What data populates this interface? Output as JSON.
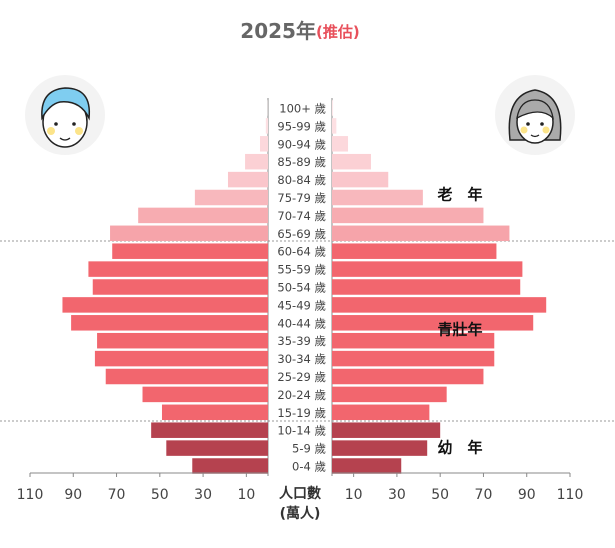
{
  "chart_data": {
    "type": "pyramid",
    "title": "2025年",
    "subtitle": "(推估)",
    "title_color": "#666666",
    "subtitle_color": "#e8505b",
    "axis_label": [
      "人口數",
      "(萬人)"
    ],
    "categories": [
      "0-4 歲",
      "5-9 歲",
      "10-14 歲",
      "15-19 歲",
      "20-24 歲",
      "25-29 歲",
      "30-34 歲",
      "35-39 歲",
      "40-44 歲",
      "45-49 歲",
      "50-54 歲",
      "55-59 歲",
      "60-64 歲",
      "65-69 歲",
      "70-74 歲",
      "75-79 歲",
      "80-84 歲",
      "85-89 歲",
      "90-94 歲",
      "95-99 歲",
      "100+ 歲"
    ],
    "bar_colors": [
      "#b5424f",
      "#b5424f",
      "#b5424f",
      "#f2666e",
      "#f2666e",
      "#f2666e",
      "#f2666e",
      "#f2666e",
      "#f2666e",
      "#f2666e",
      "#f2666e",
      "#f2666e",
      "#f2666e",
      "#f6a4aa",
      "#f7acb1",
      "#f8b8bd",
      "#fac6cb",
      "#fbd0d4",
      "#fcd8dc",
      "#fde0e3",
      "#fde8ea"
    ],
    "series": [
      {
        "values": [
          35,
          47,
          54,
          49,
          58,
          75,
          80,
          79,
          91,
          95,
          81,
          83,
          72,
          73,
          60,
          33.8,
          18.5,
          10.6,
          3.7,
          1,
          0.1
        ]
      },
      {
        "values": [
          32,
          44,
          50,
          45,
          53,
          70,
          75,
          75,
          93,
          99,
          87,
          88,
          76,
          82,
          70,
          42,
          26,
          18,
          7.4,
          2,
          0.5
        ]
      }
    ],
    "xlim": [
      0,
      110
    ],
    "xticks": [
      10,
      30,
      50,
      70,
      90,
      110
    ],
    "annotations": [
      "老　年",
      "青壯年",
      "幼　年"
    ]
  }
}
